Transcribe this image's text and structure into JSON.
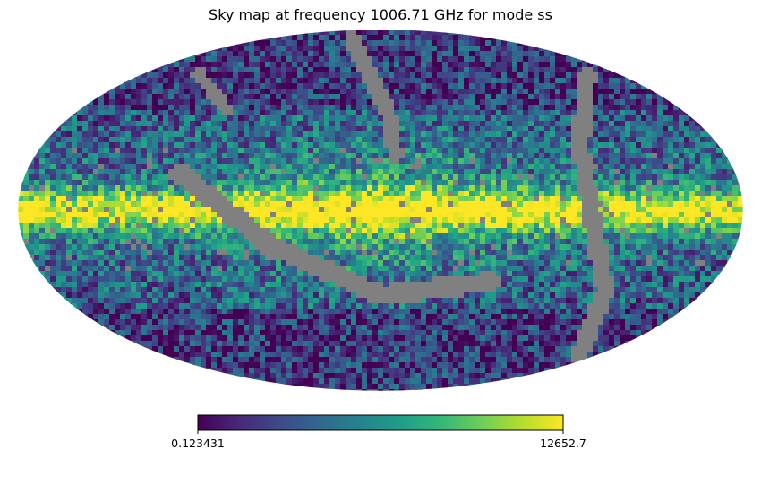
{
  "chart_data": {
    "type": "heatmap",
    "projection": "mollweide",
    "title": "Sky map at frequency 1006.71 GHz for mode ss",
    "colormap": "viridis",
    "colorbar": {
      "min": 0.123431,
      "max": 12652.7,
      "min_label": "0.123431",
      "max_label": "12652.7",
      "orientation": "horizontal",
      "placement": "bottom"
    },
    "mask_color": "#808080",
    "colormap_stops": [
      "#440154",
      "#482878",
      "#3e4989",
      "#31688e",
      "#26828e",
      "#1f9e89",
      "#35b779",
      "#6ece58",
      "#b5de2b",
      "#fde725"
    ]
  }
}
